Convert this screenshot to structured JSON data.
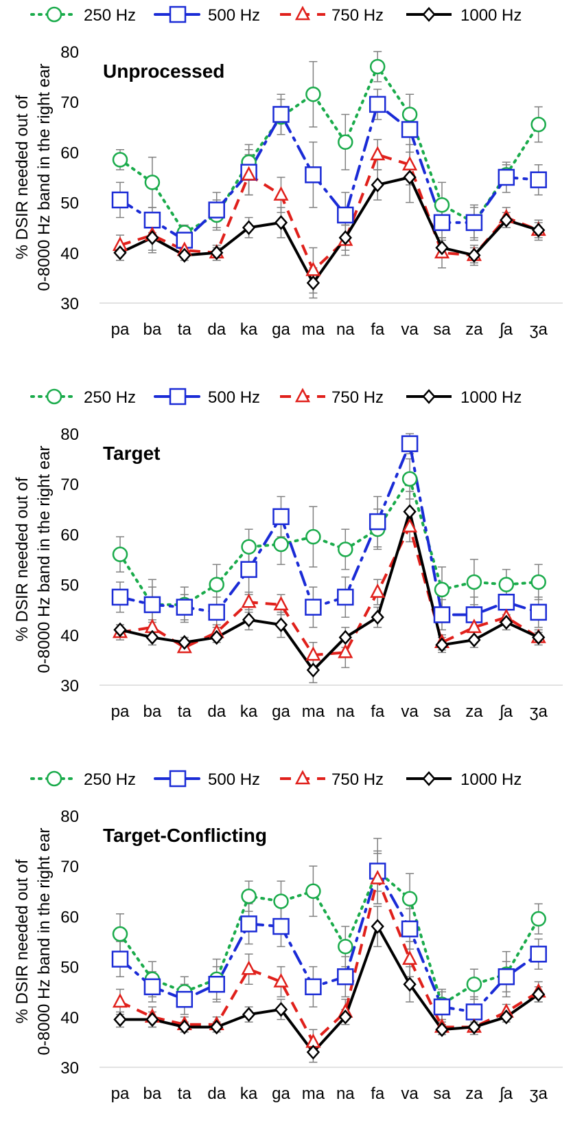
{
  "legend": {
    "s250": "250 Hz",
    "s500": "500 Hz",
    "s750": "750 Hz",
    "s1000": "1000 Hz"
  },
  "colors": {
    "s250": "#1aab4b",
    "s500": "#1a2bd6",
    "s750": "#e0201b",
    "s1000": "#000000",
    "error_bar": "#808080"
  },
  "chart_data": [
    {
      "type": "line",
      "title": "Unprocessed",
      "ylabel_line1": "% DSIR needed out of",
      "ylabel_line2": "0-8000 Hz band in the right ear",
      "xlabel": "",
      "ylim": [
        30,
        80
      ],
      "yticks": [
        30,
        40,
        50,
        60,
        70,
        80
      ],
      "categories": [
        "pa",
        "ba",
        "ta",
        "da",
        "ka",
        "ga",
        "ma",
        "na",
        "fa",
        "va",
        "sa",
        "za",
        "ʃa",
        "ʒa"
      ],
      "series": [
        {
          "name": "250 Hz",
          "values": [
            58.5,
            54,
            44,
            47.5,
            58,
            67,
            71.5,
            62,
            77,
            67.5,
            49.5,
            46,
            55.5,
            65.5
          ],
          "errors": [
            2,
            5,
            1.5,
            3,
            3.5,
            3.5,
            6.5,
            5.5,
            3,
            4,
            4.5,
            3.5,
            2,
            3.5
          ]
        },
        {
          "name": "500 Hz",
          "values": [
            50.5,
            46.5,
            42.5,
            48.5,
            56,
            67.5,
            55.5,
            47.5,
            69.5,
            64.5,
            46,
            46,
            55,
            54.5
          ],
          "errors": [
            3.5,
            2.5,
            2.5,
            3.5,
            4.5,
            4,
            6.5,
            4.5,
            3,
            7,
            3.5,
            3,
            3,
            3
          ]
        },
        {
          "name": "750 Hz",
          "values": [
            41.5,
            43.5,
            40.5,
            40,
            55.5,
            51.5,
            36.5,
            42.5,
            59.5,
            57.5,
            40,
            39.5,
            47,
            44.5
          ],
          "errors": [
            2,
            3,
            1.5,
            1.5,
            4,
            3.5,
            4.5,
            3,
            3,
            4,
            3,
            2,
            2,
            2
          ]
        },
        {
          "name": "1000 Hz",
          "values": [
            40,
            43,
            39.5,
            40,
            45,
            46,
            34,
            43,
            53.5,
            55,
            41,
            39.5,
            46.5,
            44.5
          ],
          "errors": [
            1.5,
            3,
            1,
            1,
            2,
            3,
            3,
            2.5,
            3,
            5,
            2,
            1.5,
            1.5,
            1.5
          ]
        }
      ]
    },
    {
      "type": "line",
      "title": "Target",
      "ylabel_line1": "% DSIR needed out of",
      "ylabel_line2": "0-8000 Hz band in the right ear",
      "xlabel": "",
      "ylim": [
        30,
        80
      ],
      "yticks": [
        30,
        40,
        50,
        60,
        70,
        80
      ],
      "categories": [
        "pa",
        "ba",
        "ta",
        "da",
        "ka",
        "ga",
        "ma",
        "na",
        "fa",
        "va",
        "sa",
        "za",
        "ʃa",
        "ʒa"
      ],
      "series": [
        {
          "name": "250 Hz",
          "values": [
            56,
            46,
            46,
            50,
            57.5,
            58,
            59.5,
            57,
            61,
            71,
            49,
            50.5,
            50,
            50.5
          ],
          "errors": [
            3.5,
            5,
            3.5,
            4,
            3.5,
            4,
            6,
            4,
            4,
            4,
            4.5,
            4.5,
            3,
            3.5
          ]
        },
        {
          "name": "500 Hz",
          "values": [
            47.5,
            46,
            45.5,
            44.5,
            53,
            63.5,
            45.5,
            47.5,
            62.5,
            78,
            44,
            44,
            46.5,
            44.5
          ],
          "errors": [
            3,
            3.5,
            2.5,
            3,
            5,
            4,
            4,
            4,
            5,
            2,
            3,
            3.5,
            3,
            3
          ]
        },
        {
          "name": "750 Hz",
          "values": [
            40.5,
            41.5,
            37.5,
            40.5,
            46.5,
            46,
            36,
            36.5,
            48.5,
            61.5,
            38.5,
            41.5,
            43.5,
            39.5
          ],
          "errors": [
            1.5,
            1.5,
            1,
            1.5,
            2,
            2,
            2.5,
            3,
            2.5,
            3,
            1.5,
            2,
            1.5,
            1.5
          ]
        },
        {
          "name": "1000 Hz",
          "values": [
            41,
            39.5,
            38.5,
            39.5,
            43,
            42,
            33,
            39.5,
            43.5,
            64.5,
            38,
            39,
            42.5,
            39.5
          ],
          "errors": [
            1,
            1.5,
            1,
            1,
            2,
            2.5,
            2.5,
            2,
            2,
            4,
            1.5,
            1.5,
            1.5,
            1
          ]
        }
      ]
    },
    {
      "type": "line",
      "title": "Target-Conflicting",
      "ylabel_line1": "% DSIR needed out of",
      "ylabel_line2": "0-8000 Hz band in the right ear",
      "xlabel": "",
      "ylim": [
        30,
        80
      ],
      "yticks": [
        30,
        40,
        50,
        60,
        70,
        80
      ],
      "categories": [
        "pa",
        "ba",
        "ta",
        "da",
        "ka",
        "ga",
        "ma",
        "na",
        "fa",
        "va",
        "sa",
        "za",
        "ʃa",
        "ʒa"
      ],
      "series": [
        {
          "name": "250 Hz",
          "values": [
            56.5,
            47.5,
            45,
            47.5,
            64,
            63,
            65,
            54,
            69,
            63.5,
            42.5,
            46.5,
            48.5,
            59.5
          ],
          "errors": [
            4,
            3.5,
            3,
            4,
            3,
            4,
            5,
            4,
            6.5,
            5,
            3,
            3,
            4.5,
            3
          ]
        },
        {
          "name": "500 Hz",
          "values": [
            51.5,
            46,
            43.5,
            46.5,
            58.5,
            58,
            46,
            48,
            69,
            57.5,
            42,
            41,
            48,
            52.5
          ],
          "errors": [
            3.5,
            3,
            3,
            3.5,
            4,
            4,
            4,
            4,
            4,
            4,
            3,
            3,
            3,
            3
          ]
        },
        {
          "name": "750 Hz",
          "values": [
            43,
            40,
            38.5,
            38.5,
            49.5,
            47,
            35,
            41,
            67.5,
            51.5,
            38,
            38,
            41,
            45
          ],
          "errors": [
            2.5,
            2,
            1.5,
            1.5,
            3,
            3,
            2.5,
            2.5,
            5,
            3.5,
            1.5,
            1.5,
            1.5,
            2
          ]
        },
        {
          "name": "1000 Hz",
          "values": [
            39.5,
            39.5,
            38,
            38,
            40.5,
            41.5,
            33,
            40,
            58,
            46.5,
            37.5,
            38,
            40,
            44.5
          ],
          "errors": [
            1.5,
            1.5,
            1,
            1,
            1.5,
            2,
            2,
            1.5,
            4,
            3.5,
            1,
            1,
            1,
            1.5
          ]
        }
      ]
    }
  ]
}
